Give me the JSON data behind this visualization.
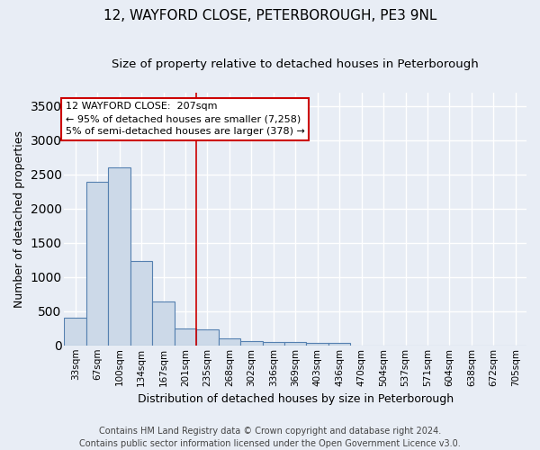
{
  "title": "12, WAYFORD CLOSE, PETERBOROUGH, PE3 9NL",
  "subtitle": "Size of property relative to detached houses in Peterborough",
  "xlabel": "Distribution of detached houses by size in Peterborough",
  "ylabel": "Number of detached properties",
  "footnote1": "Contains HM Land Registry data © Crown copyright and database right 2024.",
  "footnote2": "Contains public sector information licensed under the Open Government Licence v3.0.",
  "bar_labels": [
    "33sqm",
    "67sqm",
    "100sqm",
    "134sqm",
    "167sqm",
    "201sqm",
    "235sqm",
    "268sqm",
    "302sqm",
    "336sqm",
    "369sqm",
    "403sqm",
    "436sqm",
    "470sqm",
    "504sqm",
    "537sqm",
    "571sqm",
    "604sqm",
    "638sqm",
    "672sqm",
    "705sqm"
  ],
  "bar_values": [
    400,
    2400,
    2600,
    1240,
    640,
    250,
    240,
    100,
    60,
    55,
    55,
    35,
    35,
    0,
    0,
    0,
    0,
    0,
    0,
    0,
    0
  ],
  "bar_color": "#ccd9e8",
  "bar_edge_color": "#5580b0",
  "bar_edge_width": 0.8,
  "red_line_x": 5.5,
  "red_line_color": "#cc0000",
  "annotation_text": "12 WAYFORD CLOSE:  207sqm\n← 95% of detached houses are smaller (7,258)\n5% of semi-detached houses are larger (378) →",
  "annotation_box_color": "#ffffff",
  "annotation_box_edge": "#cc0000",
  "ylim": [
    0,
    3700
  ],
  "yticks": [
    0,
    500,
    1000,
    1500,
    2000,
    2500,
    3000,
    3500
  ],
  "bg_color": "#e8edf5",
  "plot_bg_color": "#e8edf5",
  "grid_color": "#ffffff",
  "title_fontsize": 11,
  "subtitle_fontsize": 9.5,
  "xlabel_fontsize": 9,
  "ylabel_fontsize": 9,
  "tick_fontsize": 7.5,
  "annotation_fontsize": 8,
  "footnote_fontsize": 7
}
